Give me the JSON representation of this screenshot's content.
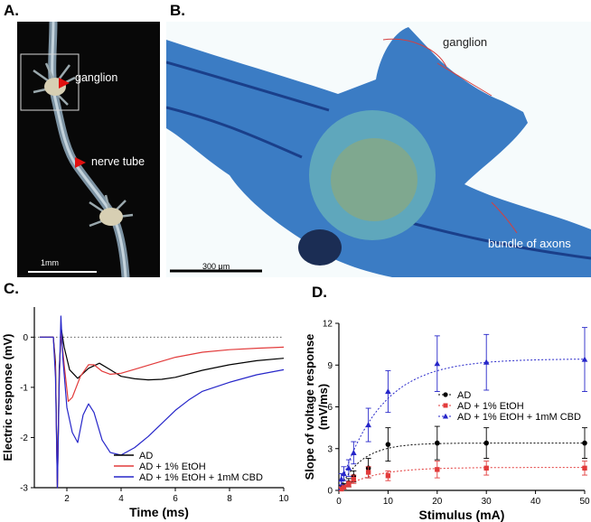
{
  "panels": {
    "a": {
      "letter": "A.",
      "labels": {
        "ganglion": "ganglion",
        "nerve_tube": "nerve tube"
      },
      "scale_bar": "1mm"
    },
    "b": {
      "letter": "B.",
      "labels": {
        "ganglion": "ganglion",
        "bundle": "bundle of axons"
      },
      "scale_bar": "300 μm"
    },
    "c": {
      "letter": "C."
    },
    "d": {
      "letter": "D."
    }
  },
  "colors": {
    "black": "#000000",
    "red": "#e23b3b",
    "blue": "#2626c9",
    "arrow": "#e01010"
  },
  "chart_data": [
    {
      "type": "line",
      "title": "",
      "xlabel": "Time (ms)",
      "ylabel": "Electric response (mV)",
      "xlim": [
        0.8,
        10
      ],
      "ylim": [
        -3,
        0.6
      ],
      "xticks": [
        2,
        4,
        6,
        8,
        10
      ],
      "yticks": [
        0,
        -1,
        -2,
        -3
      ],
      "xtick_labels": [
        "2",
        "4",
        "6",
        "8",
        "10"
      ],
      "ytick_labels": [
        "0",
        "-1",
        "-2",
        "-3"
      ],
      "reference_line": 0,
      "legend_position": "bottom-right",
      "series": [
        {
          "name": "AD",
          "color": "#000000",
          "x": [
            1.0,
            1.5,
            1.58,
            1.65,
            1.72,
            1.8,
            1.9,
            2.1,
            2.4,
            2.8,
            3.2,
            3.6,
            4.0,
            4.5,
            5.0,
            5.5,
            6.0,
            7.0,
            8.0,
            9.0,
            10.0
          ],
          "y": [
            0,
            0,
            -0.5,
            -3.0,
            -0.6,
            0.15,
            -0.2,
            -0.65,
            -0.82,
            -0.62,
            -0.52,
            -0.65,
            -0.78,
            -0.83,
            -0.85,
            -0.84,
            -0.8,
            -0.66,
            -0.55,
            -0.47,
            -0.42
          ]
        },
        {
          "name": "AD + 1% EtOH",
          "color": "#e23b3b",
          "x": [
            1.0,
            1.5,
            1.58,
            1.65,
            1.72,
            1.78,
            1.9,
            2.05,
            2.2,
            2.5,
            2.8,
            3.0,
            3.3,
            3.6,
            4.0,
            4.5,
            5.0,
            6.0,
            7.0,
            8.0,
            9.0,
            10.0
          ],
          "y": [
            0,
            0,
            -0.6,
            -3.0,
            -0.8,
            0.12,
            -0.55,
            -1.28,
            -1.2,
            -0.78,
            -0.55,
            -0.55,
            -0.68,
            -0.74,
            -0.72,
            -0.64,
            -0.56,
            -0.4,
            -0.3,
            -0.25,
            -0.22,
            -0.2
          ]
        },
        {
          "name": "AD + 1% EtOH + 1mM CBD",
          "color": "#2626c9",
          "x": [
            1.0,
            1.5,
            1.58,
            1.65,
            1.72,
            1.78,
            1.85,
            2.0,
            2.2,
            2.4,
            2.6,
            2.8,
            3.0,
            3.3,
            3.6,
            4.0,
            4.5,
            5.0,
            5.5,
            6.0,
            6.5,
            7.0,
            8.0,
            9.0,
            10.0
          ],
          "y": [
            0,
            0,
            -0.8,
            -3.0,
            -0.9,
            0.42,
            -0.4,
            -1.4,
            -1.9,
            -2.1,
            -1.55,
            -1.33,
            -1.5,
            -2.05,
            -2.3,
            -2.35,
            -2.2,
            -1.98,
            -1.72,
            -1.46,
            -1.25,
            -1.08,
            -0.9,
            -0.75,
            -0.65
          ]
        }
      ]
    },
    {
      "type": "scatter",
      "title": "",
      "xlabel": "Stimulus (mA)",
      "ylabel": "Slope of voltage response (mV/ms)",
      "xlim": [
        0,
        50
      ],
      "ylim": [
        0,
        12
      ],
      "xticks": [
        0,
        10,
        20,
        30,
        40,
        50
      ],
      "yticks": [
        0,
        3,
        6,
        9,
        12
      ],
      "xtick_labels": [
        "0",
        "10",
        "20",
        "30",
        "40",
        "50"
      ],
      "ytick_labels": [
        "0",
        "3",
        "6",
        "9",
        "12"
      ],
      "legend_position": "center-right",
      "series": [
        {
          "name": "AD",
          "color": "#000000",
          "marker": "circle",
          "x": [
            0.5,
            1,
            2,
            3,
            6,
            10,
            20,
            30,
            50
          ],
          "y": [
            0.15,
            0.3,
            0.55,
            1.0,
            1.6,
            3.3,
            3.4,
            3.4,
            3.4
          ],
          "err": [
            0.2,
            0.2,
            0.3,
            0.4,
            0.7,
            1.2,
            1.2,
            1.1,
            1.1
          ],
          "fit_plateau": 3.4,
          "fit_k": 0.22
        },
        {
          "name": "AD + 1% EtOH",
          "color": "#e23b3b",
          "marker": "square",
          "x": [
            0.5,
            1,
            2,
            3,
            6,
            10,
            20,
            30,
            50
          ],
          "y": [
            0.1,
            0.25,
            0.45,
            0.8,
            1.3,
            1.05,
            1.5,
            1.6,
            1.6
          ],
          "err": [
            0.15,
            0.15,
            0.2,
            0.3,
            0.4,
            0.35,
            0.6,
            0.5,
            0.5
          ],
          "fit_plateau": 1.65,
          "fit_k": 0.15
        },
        {
          "name": "AD + 1% EtOH + 1mM CBD",
          "color": "#2626c9",
          "marker": "triangle",
          "x": [
            0.5,
            1,
            2,
            3,
            6,
            10,
            20,
            30,
            50
          ],
          "y": [
            0.8,
            1.2,
            1.6,
            2.7,
            4.7,
            7.1,
            9.1,
            9.2,
            9.4
          ],
          "err": [
            0.4,
            0.5,
            0.6,
            0.8,
            1.2,
            1.5,
            2.0,
            2.0,
            2.3
          ],
          "fit_plateau": 9.45,
          "fit_k": 0.12
        }
      ]
    }
  ]
}
